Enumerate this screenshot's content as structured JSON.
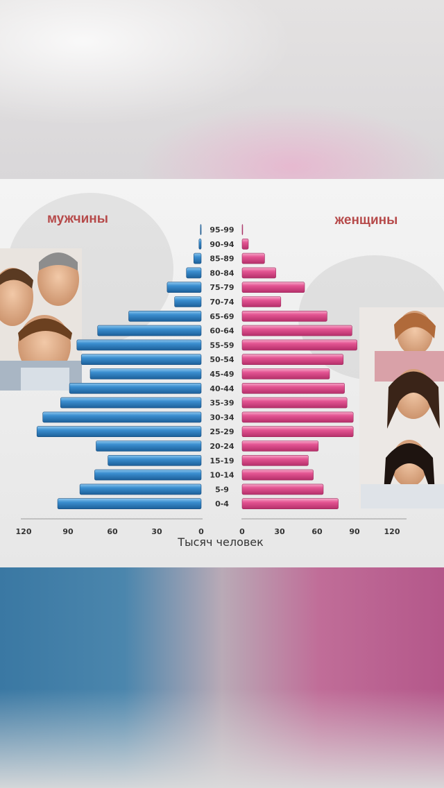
{
  "chart_data": {
    "type": "bar",
    "subtype": "population-pyramid",
    "title": "",
    "xlabel": "Тысяч человек",
    "ylabel": "",
    "xlim": [
      0,
      120
    ],
    "x_ticks_left": [
      "120",
      "90",
      "60",
      "30",
      "0"
    ],
    "x_ticks_right": [
      "0",
      "30",
      "60",
      "90",
      "120"
    ],
    "categories": [
      "95-99",
      "90-94",
      "85-89",
      "80-84",
      "75-79",
      "70-74",
      "65-69",
      "60-64",
      "55-59",
      "50-54",
      "45-49",
      "40-44",
      "35-39",
      "30-34",
      "25-29",
      "20-24",
      "15-19",
      "10-14",
      "5-9",
      "0-4"
    ],
    "series": [
      {
        "name": "мужчины",
        "color": "#2e7fc0",
        "values": [
          0.5,
          1.5,
          5,
          10,
          23,
          18,
          49,
          70,
          84,
          81,
          75,
          89,
          95,
          107,
          111,
          71,
          63,
          72,
          82,
          97
        ]
      },
      {
        "name": "женщины",
        "color": "#e0508c",
        "values": [
          0.5,
          5,
          18,
          27,
          50,
          31,
          68,
          88,
          92,
          81,
          70,
          82,
          84,
          89,
          89,
          61,
          53,
          57,
          65,
          77
        ]
      }
    ],
    "grid": false,
    "legend": "top-left / top-right labels"
  },
  "decor": {
    "left_photo_icon": "family-men-photo-icon",
    "right_photo_icon": "family-women-photo-icon"
  }
}
